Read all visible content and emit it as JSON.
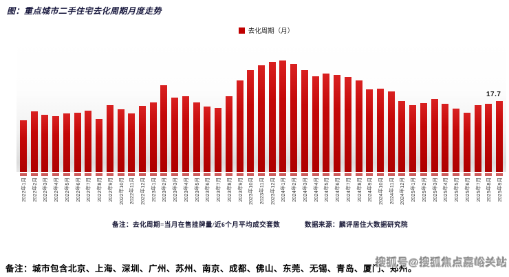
{
  "title": "图：重点城市二手住宅去化周期月度走势",
  "legend": {
    "label": "去化周期（月）",
    "color": "#c00000"
  },
  "chart_data": {
    "type": "bar",
    "title": "重点城市二手住宅去化周期月度走势",
    "series_name": "去化周期（月）",
    "bar_color": "#c00000",
    "ylim": [
      0,
      30
    ],
    "grid": false,
    "legend_position": "top-center",
    "categories": [
      "2022年1月",
      "2022年2月",
      "2022年3月",
      "2022年4月",
      "2022年5月",
      "2022年6月",
      "2022年7月",
      "2022年8月",
      "2022年9月",
      "2022年10月",
      "2022年11月",
      "2022年12月",
      "2023年1月",
      "2023年2月",
      "2023年3月",
      "2023年4月",
      "2023年5月",
      "2023年6月",
      "2023年7月",
      "2023年8月",
      "2023年9月",
      "2023年10月",
      "2023年11月",
      "2023年12月",
      "2024年1月",
      "2024年2月",
      "2024年3月",
      "2024年4月",
      "2024年5月",
      "2024年6月",
      "2024年7月",
      "2024年8月",
      "2024年9月",
      "2024年10月",
      "2024年11月",
      "2024年12月",
      "2025年1月",
      "2025年2月",
      "2025年3月",
      "2025年4月",
      "2025年5月",
      "2025年6月",
      "2025年7月",
      "2025年8月",
      "2025年9月"
    ],
    "values": [
      12.9,
      15.2,
      14.4,
      13.9,
      14.7,
      14.9,
      15.4,
      13.3,
      16.8,
      15.7,
      14.7,
      16.5,
      17.4,
      21.7,
      18.6,
      18.9,
      17.5,
      16.4,
      16.1,
      19.0,
      22.9,
      25.5,
      26.7,
      27.6,
      27.9,
      27.1,
      25.5,
      24.0,
      24.7,
      24.4,
      23.8,
      23.0,
      20.7,
      20.9,
      20.2,
      17.8,
      16.7,
      17.2,
      18.3,
      17.1,
      15.9,
      14.8,
      16.7,
      17.0,
      17.7
    ],
    "last_value_label": "17.7"
  },
  "notes": {
    "formula": "备注：去化周期=当月在售挂牌量/近6个月平均成交套数",
    "source": "数据来源：麟评居住大数据研究院"
  },
  "footer_note": "备注：城市包含北京、上海、深圳、广州、苏州、南京、成都、佛山、东莞、无锡、青岛、厦门、郑州。",
  "watermark": "搜狐号@搜狐焦点嘉峪关站"
}
